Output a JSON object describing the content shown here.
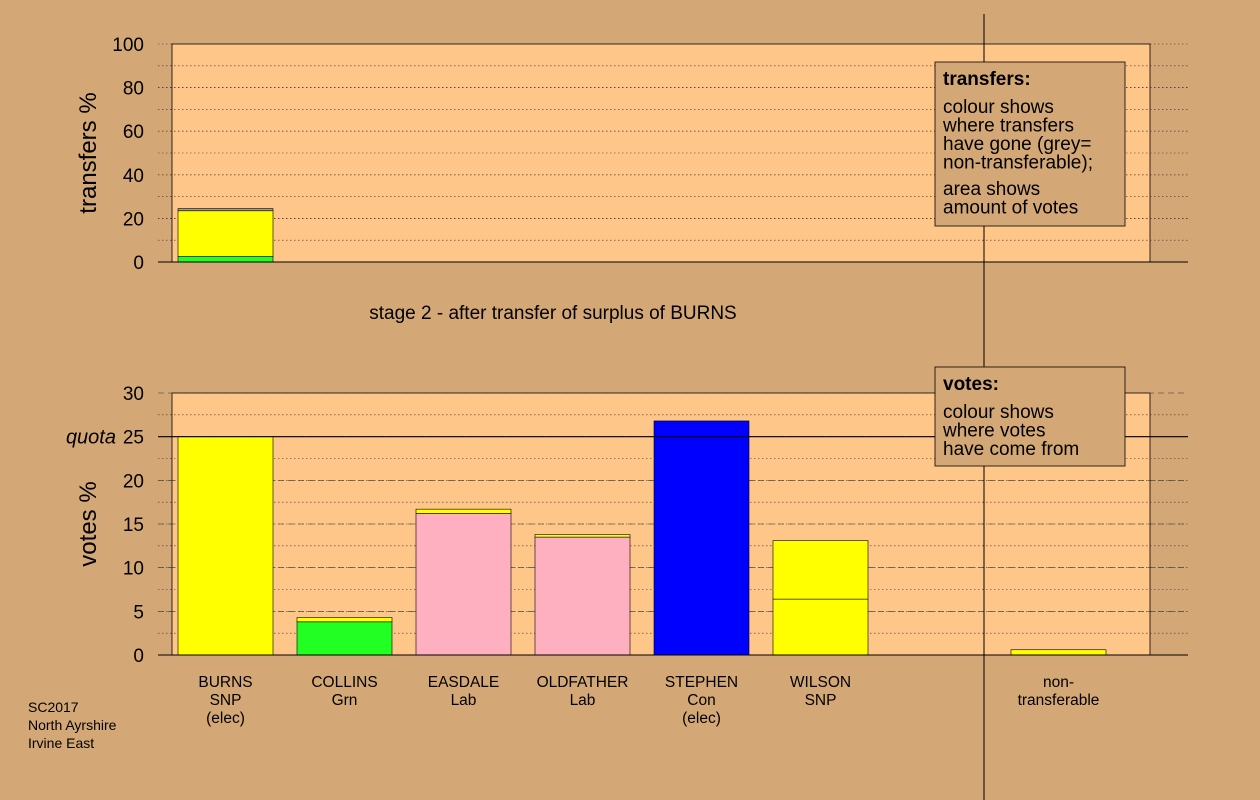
{
  "colors": {
    "background": "#d4a876",
    "plot_background": "#ffc68a",
    "snp": "#ffff00",
    "grn": "#22ff22",
    "lab": "#ffb0c0",
    "con": "#0000ff",
    "nontransferable": "#9a9a9a"
  },
  "chart_data": [
    {
      "id": "transfers",
      "type": "bar",
      "ylabel": "transfers %",
      "ylim": [
        0,
        100
      ],
      "yticks": [
        0,
        20,
        40,
        60,
        80,
        100
      ],
      "grid": "dotted",
      "subtitle": "stage 2 - after transfer of surplus of BURNS",
      "bars": [
        {
          "slot": 0,
          "segments": [
            {
              "color": "#22ff22",
              "value": 2.5
            },
            {
              "color": "#ffff00",
              "value": 21.0
            },
            {
              "color": "#9a9a9a",
              "value": 1.0
            }
          ]
        }
      ],
      "legend": {
        "placement": "top-right",
        "title": "transfers:",
        "lines1": [
          "colour shows",
          "where transfers",
          "have gone (grey=",
          "non-transferable);"
        ],
        "lines2": [
          "area shows",
          "amount of votes"
        ]
      }
    },
    {
      "id": "votes",
      "type": "bar",
      "ylabel": "votes %",
      "ylim": [
        0,
        30
      ],
      "yticks": [
        0,
        5,
        10,
        15,
        20,
        25,
        30
      ],
      "grid": "dotted",
      "quota": {
        "value": 25,
        "label": "quota"
      },
      "categories": [
        {
          "lines": [
            "BURNS",
            "SNP",
            "(elec)"
          ]
        },
        {
          "lines": [
            "COLLINS",
            "Grn"
          ]
        },
        {
          "lines": [
            "EASDALE",
            "Lab"
          ]
        },
        {
          "lines": [
            "OLDFATHER",
            "Lab"
          ]
        },
        {
          "lines": [
            "STEPHEN",
            "Con",
            "(elec)"
          ]
        },
        {
          "lines": [
            "WILSON",
            "SNP"
          ]
        },
        {
          "lines": [
            "",
            ""
          ]
        },
        {
          "lines": [
            "non-",
            "transferable"
          ]
        }
      ],
      "bars": [
        {
          "slot": 0,
          "segments": [
            {
              "color": "#ffff00",
              "value": 25.0
            }
          ]
        },
        {
          "slot": 1,
          "segments": [
            {
              "color": "#22ff22",
              "value": 3.8
            },
            {
              "color": "#ffff00",
              "value": 0.5
            }
          ]
        },
        {
          "slot": 2,
          "segments": [
            {
              "color": "#ffb0c0",
              "value": 16.2
            },
            {
              "color": "#ffff00",
              "value": 0.5
            }
          ]
        },
        {
          "slot": 3,
          "segments": [
            {
              "color": "#ffb0c0",
              "value": 13.5
            },
            {
              "color": "#ffff00",
              "value": 0.3
            }
          ]
        },
        {
          "slot": 4,
          "segments": [
            {
              "color": "#0000ff",
              "value": 26.8
            }
          ]
        },
        {
          "slot": 5,
          "segments": [
            {
              "color": "#ffff00",
              "value": 6.4
            },
            {
              "color": "#ffff00",
              "value": 6.7
            }
          ]
        },
        {
          "slot": 7,
          "segments": [
            {
              "color": "#ffff00",
              "value": 0.6
            }
          ]
        }
      ],
      "legend": {
        "placement": "top-right",
        "title": "votes:",
        "lines1": [
          "colour shows",
          "where votes",
          "have come from"
        ]
      }
    }
  ],
  "footer": {
    "lines": [
      "SC2017",
      "North Ayrshire",
      "Irvine East"
    ]
  }
}
